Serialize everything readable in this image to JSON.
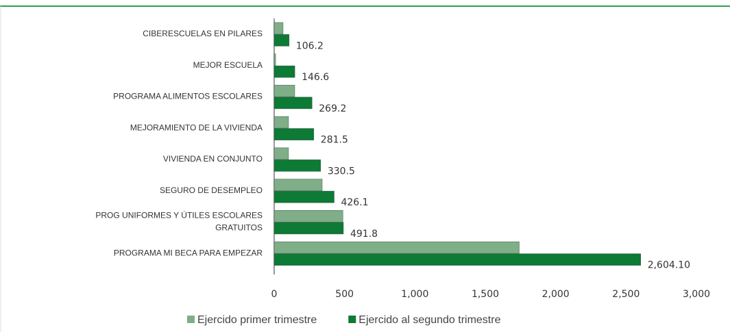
{
  "chart_data": {
    "type": "bar",
    "orientation": "horizontal",
    "categories": [
      "CIBERESCUELAS EN PILARES",
      "MEJOR ESCUELA",
      "PROGRAMA ALIMENTOS ESCOLARES",
      "MEJORAMIENTO DE LA VIVIENDA",
      "VIVIENDA  EN CONJUNTO",
      "SEGURO DE DESEMPLEO",
      "PROG UNIFORMES Y ÚTILES ESCOLARES GRATUITOS",
      "PROGRAMA MI BECA PARA EMPEZAR"
    ],
    "series": [
      {
        "name": "Ejercido primer trimestre",
        "color": "#7fae88",
        "values": [
          63,
          10,
          146,
          102,
          102,
          341,
          488,
          1741
        ]
      },
      {
        "name": "Ejercido al segundo trimestre",
        "color": "#0d7a35",
        "values": [
          106.2,
          146.6,
          269.2,
          281.5,
          330.5,
          426.1,
          491.8,
          2604.1
        ],
        "value_labels": [
          "106.2",
          "146.6",
          "269.2",
          "281.5",
          "330.5",
          "426.1",
          "491.8",
          "2,604.10"
        ]
      }
    ],
    "xlim": [
      0,
      3000
    ],
    "xticks": [
      0,
      500,
      {
        "value": 1000,
        "label": "1,000"
      },
      {
        "value": 1500,
        "label": "1,500"
      },
      {
        "value": 2000,
        "label": "2,000"
      },
      {
        "value": 2500,
        "label": "2,500"
      },
      {
        "value": 3000,
        "label": "3,000"
      }
    ],
    "legend": "bottom"
  }
}
